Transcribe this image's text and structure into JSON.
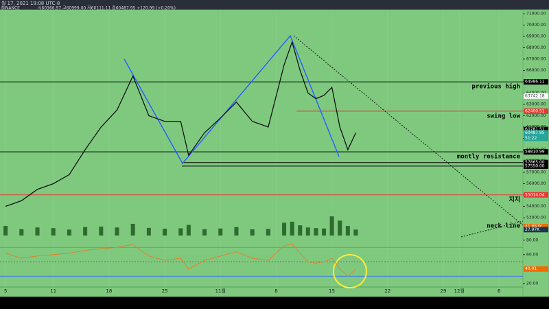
{
  "header": {
    "date": "월 17, 2021 19:08 UTC-8",
    "exchange": "BINANCE",
    "ohlc": "시60366.97 고60999.00 저60111.11 종60487.95 +120.99 (+0.20%)"
  },
  "chart_data": [
    {
      "type": "line",
      "color": "#111111",
      "x": [
        0,
        2,
        4,
        6,
        8,
        10,
        12,
        14,
        16,
        18,
        20,
        22,
        23,
        25,
        27,
        29,
        31,
        33,
        35,
        36,
        37,
        38,
        39,
        40,
        41,
        42,
        43,
        44
      ],
      "values": [
        54000,
        54500,
        55500,
        56000,
        56800,
        59000,
        61000,
        62500,
        65500,
        62000,
        61500,
        61500,
        58500,
        60500,
        61800,
        63200,
        61500,
        61000,
        66500,
        68500,
        66000,
        64000,
        63500,
        63800,
        64500,
        61000,
        59000,
        60487.95
      ],
      "xlim": [
        -0.7,
        65
      ],
      "xticks": [
        {
          "value": 0,
          "label": "5"
        },
        {
          "value": 6,
          "label": "11"
        },
        {
          "value": 13,
          "label": "18"
        },
        {
          "value": 20,
          "label": "25"
        },
        {
          "value": 27,
          "label": "11월"
        },
        {
          "value": 34,
          "label": "8"
        },
        {
          "value": 41,
          "label": "15"
        },
        {
          "value": 48,
          "label": "22"
        },
        {
          "value": 55,
          "label": "29"
        },
        {
          "value": 57,
          "label": "12월"
        },
        {
          "value": 62,
          "label": "6"
        }
      ],
      "ylim": [
        52636,
        71364
      ],
      "yticks": [
        {
          "value": 71000,
          "label": "71000.00"
        },
        {
          "value": 70000,
          "label": "70000.00"
        },
        {
          "value": 69000,
          "label": "69000.00"
        },
        {
          "value": 68000,
          "label": "68000.00"
        },
        {
          "value": 67000,
          "label": "67000.00"
        },
        {
          "value": 66000,
          "label": "66000.00"
        },
        {
          "value": 65000,
          "label": "65000.00"
        },
        {
          "value": 64000,
          "label": "64000.00"
        },
        {
          "value": 63000,
          "label": "63000.00"
        },
        {
          "value": 62000,
          "label": "62000.00"
        },
        {
          "value": 61000,
          "label": "61000.00"
        },
        {
          "value": 60000,
          "label": "60000.00"
        },
        {
          "value": 59000,
          "label": "59000.00"
        },
        {
          "value": 58000,
          "label": "58000.00"
        },
        {
          "value": 57000,
          "label": "57000.00"
        },
        {
          "value": 56000,
          "label": "56000.00"
        },
        {
          "value": 55000,
          "label": "55000.00"
        },
        {
          "value": 54000,
          "label": "54000.00"
        },
        {
          "value": 53000,
          "label": "53000.00"
        }
      ],
      "levels": [
        {
          "value": 64986.11,
          "label": "64986.11",
          "color": "#000000",
          "note": "previous high"
        },
        {
          "value": 62400.51,
          "label": "62400.51",
          "color": "#e53935",
          "note": "swing low"
        },
        {
          "value": 58810.99,
          "label": "58810.99",
          "color": "#000000",
          "note": "montly resistance"
        },
        {
          "value": 57865.0,
          "label": "57865.00",
          "color": "#000000"
        },
        {
          "value": 57550.0,
          "label": "57550.00",
          "color": "#000000"
        },
        {
          "value": 55014.04,
          "label": "55014.04",
          "color": "#e53935",
          "note": "지지"
        }
      ],
      "price_tags": [
        {
          "value": 63742.18,
          "label": "63742.18",
          "bg": "#ffffff",
          "fg": "#444444"
        },
        {
          "value": 60781.51,
          "label": "60781.51",
          "bg": "#000000",
          "fg": "#ffffff"
        },
        {
          "value": 60487.95,
          "label": "60487.95",
          "bg": "#26a69a",
          "fg": "#ffffff",
          "countdown": "51:22"
        }
      ],
      "annotations": [
        "neck line"
      ]
    },
    {
      "type": "bar",
      "color": "#2e6b2e",
      "x": [
        0,
        2,
        4,
        6,
        8,
        10,
        12,
        14,
        16,
        18,
        20,
        22,
        23,
        25,
        27,
        29,
        31,
        33,
        35,
        36,
        37,
        38,
        39,
        40,
        41,
        42,
        43,
        44
      ],
      "values": [
        45,
        30,
        38,
        35,
        28,
        40,
        42,
        38,
        55,
        36,
        32,
        34,
        50,
        30,
        33,
        40,
        29,
        31,
        60,
        65,
        48,
        38,
        35,
        33,
        90,
        70,
        45,
        27.97
      ],
      "ylim": [
        0,
        100
      ],
      "price_tags": [
        {
          "value": 41.867,
          "label": "41.867K",
          "bg": "#ef6c00",
          "fg": "#ffffff"
        },
        {
          "value": 27.97,
          "label": "27.97K",
          "bg": "#1b3a4b",
          "fg": "#ffffff"
        }
      ]
    },
    {
      "type": "line",
      "color": "#e67e22",
      "x": [
        0,
        2,
        4,
        6,
        8,
        10,
        12,
        14,
        16,
        18,
        20,
        22,
        23,
        25,
        27,
        29,
        31,
        33,
        35,
        36,
        37,
        38,
        39,
        40,
        41,
        42,
        43,
        44
      ],
      "values": [
        62,
        55,
        58,
        60,
        62,
        66,
        68,
        70,
        74,
        58,
        52,
        55,
        40,
        52,
        58,
        64,
        55,
        52,
        72,
        75,
        62,
        50,
        48,
        50,
        55,
        40,
        30,
        40.01
      ],
      "ylim": [
        15,
        85
      ],
      "yticks": [
        {
          "value": 80,
          "label": "80.00"
        },
        {
          "value": 60,
          "label": "60.00"
        },
        {
          "value": 20,
          "label": "20.00"
        }
      ],
      "levels": [
        70,
        50,
        30
      ],
      "price_tags": [
        {
          "value": 40.01,
          "label": "40.01",
          "bg": "#ef6c00",
          "fg": "#ffffff"
        }
      ]
    }
  ]
}
